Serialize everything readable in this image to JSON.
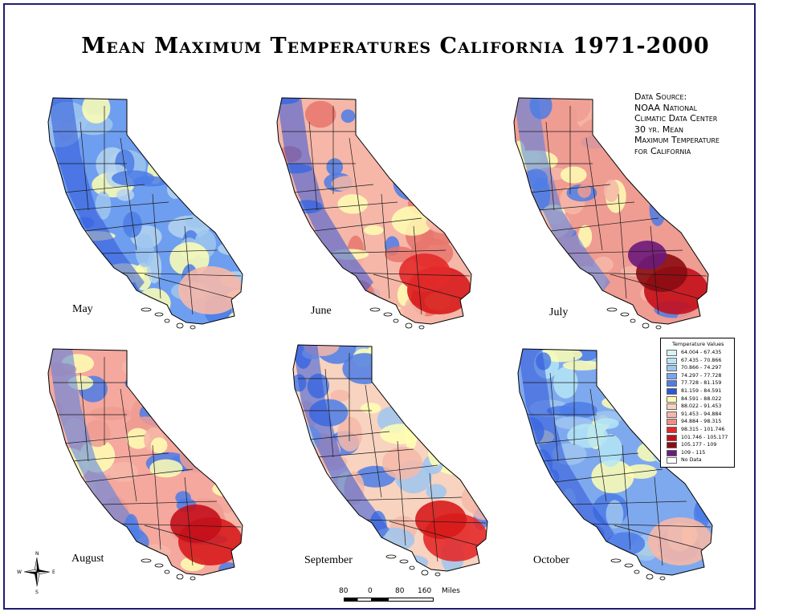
{
  "title": "Mean Maximum Temperatures California 1971-2000",
  "source_lines": [
    "Data Source:",
    "NOAA National",
    "Climatic Data Center",
    "30 yr. Mean",
    "Maximum Temperature",
    "for California"
  ],
  "maps": [
    {
      "month": "May",
      "palette": [
        "#b5d4ef",
        "#4c7de6",
        "#9fc6ef",
        "#ffffb3"
      ],
      "hot": [
        "#f6b7a8"
      ],
      "fill": "#6e9ef0"
    },
    {
      "month": "June",
      "palette": [
        "#4c7de6",
        "#ffffb3",
        "#f6b7a8",
        "#e8766c"
      ],
      "hot": [
        "#d71b1b",
        "#e32a2a"
      ],
      "fill": "#f6b7a8"
    },
    {
      "month": "July",
      "palette": [
        "#f6b7a8",
        "#ef9c92",
        "#ffffb3",
        "#4c7de6"
      ],
      "hot": [
        "#c40f1b",
        "#8a0c12",
        "#6b1a7a"
      ],
      "fill": "#ef9c92"
    },
    {
      "month": "August",
      "palette": [
        "#f6b7a8",
        "#ef9c92",
        "#ffffb3",
        "#4c7de6"
      ],
      "hot": [
        "#d71b1b",
        "#c40f1b"
      ],
      "fill": "#f4a89e"
    },
    {
      "month": "September",
      "palette": [
        "#ffffb3",
        "#4c7de6",
        "#f6b7a8",
        "#9fc6ef"
      ],
      "hot": [
        "#e32a2a",
        "#d71b1b"
      ],
      "fill": "#f8d3c0"
    },
    {
      "month": "October",
      "palette": [
        "#9fc6ef",
        "#4c7de6",
        "#b5e6f4",
        "#ffffb3"
      ],
      "hot": [
        "#f6b7a8"
      ],
      "fill": "#7fa9ee"
    }
  ],
  "legend": {
    "title": "Temperature Values",
    "items": [
      {
        "label": "64.004 - 67.435",
        "color": "#d6f3f7"
      },
      {
        "label": "67.435 - 70.866",
        "color": "#b5e6f4"
      },
      {
        "label": "70.866 - 74.297",
        "color": "#9fc6ef"
      },
      {
        "label": "74.297 - 77.728",
        "color": "#78a6ee"
      },
      {
        "label": "77.728 - 81.159",
        "color": "#4c7de6"
      },
      {
        "label": "81.159 - 84.591",
        "color": "#2f55d8"
      },
      {
        "label": "84.591 - 88.022",
        "color": "#ffffb3"
      },
      {
        "label": "88.022 - 91.453",
        "color": "#f8d3c0"
      },
      {
        "label": "91.453 - 94.884",
        "color": "#f6b7a8"
      },
      {
        "label": "94.884 - 98.315",
        "color": "#ef8d84"
      },
      {
        "label": "98.315 - 101.746",
        "color": "#e32a2a"
      },
      {
        "label": "101.746 - 105.177",
        "color": "#c40f1b"
      },
      {
        "label": "105.177 - 109",
        "color": "#8a0c12"
      },
      {
        "label": "109 - 115",
        "color": "#6b1a7a"
      },
      {
        "label": "No Data",
        "color": "#ffffff"
      }
    ]
  },
  "scale": {
    "ticks": [
      "80",
      "0",
      "80",
      "160"
    ],
    "unit": "Miles"
  },
  "compass": {
    "n": "N",
    "s": "S",
    "e": "E",
    "w": "W"
  }
}
